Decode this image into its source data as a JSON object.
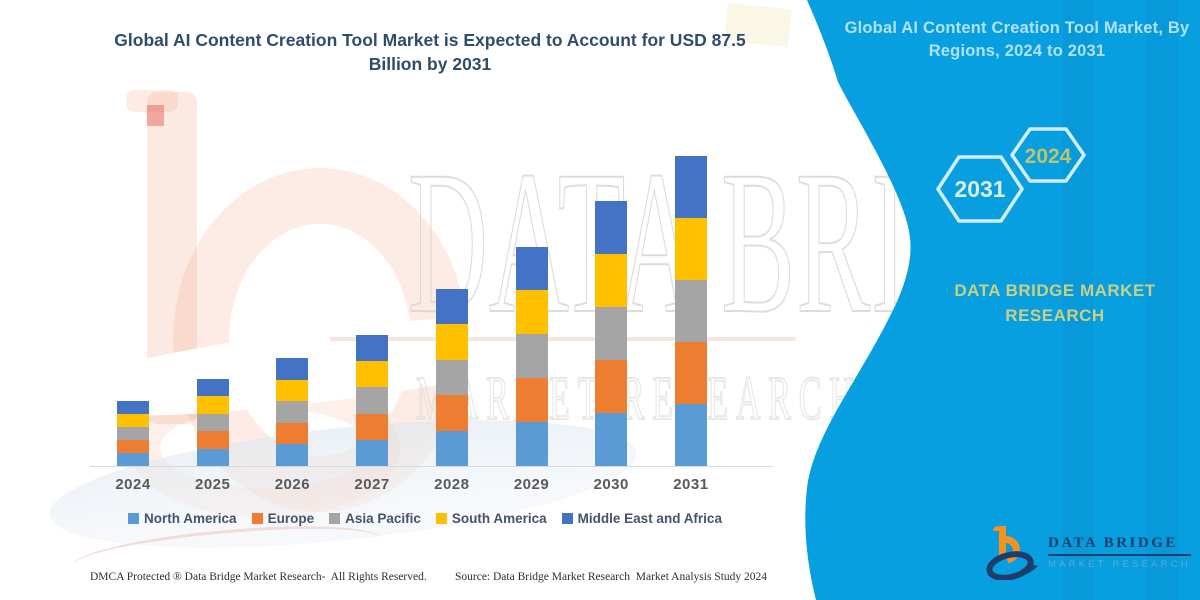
{
  "header": {
    "title_line1": "Global AI Content Creation Tool Market is Expected to Account for USD 87.5",
    "title_line2": "Billion by 2031"
  },
  "chart_data": {
    "type": "bar",
    "stacked": true,
    "title": "Global AI Content Creation Tool Market is Expected to Account for USD 87.5 Billion by 2031",
    "unit": "USD Billion",
    "categories": [
      "2024",
      "2025",
      "2026",
      "2027",
      "2028",
      "2029",
      "2030",
      "2031"
    ],
    "series": [
      {
        "name": "North America",
        "color": "#5B9BD5",
        "values": [
          3.7,
          4.9,
          6.1,
          7.4,
          10.0,
          12.4,
          15.0,
          17.5
        ]
      },
      {
        "name": "Europe",
        "color": "#ED7D31",
        "values": [
          3.7,
          4.9,
          6.1,
          7.4,
          10.0,
          12.4,
          15.0,
          17.5
        ]
      },
      {
        "name": "Asia Pacific",
        "color": "#A5A5A5",
        "values": [
          3.7,
          4.9,
          6.1,
          7.4,
          10.0,
          12.4,
          15.0,
          17.5
        ]
      },
      {
        "name": "South America",
        "color": "#FFC000",
        "values": [
          3.7,
          4.9,
          6.1,
          7.4,
          10.0,
          12.4,
          15.0,
          17.5
        ]
      },
      {
        "name": "Middle East and Africa",
        "color": "#4472C4",
        "values": [
          3.7,
          4.9,
          6.1,
          7.4,
          10.0,
          12.4,
          15.0,
          17.5
        ]
      }
    ],
    "totals": [
      18.5,
      24.5,
      30.5,
      37.0,
      50.0,
      62.0,
      75.0,
      87.5
    ],
    "ylim": [
      0,
      87.5
    ],
    "y_axis_labels_visible": false,
    "gridlines": false,
    "legend_position": "bottom"
  },
  "side_panel": {
    "background": "#089FE0",
    "title": "Global AI Content Creation Tool Market, By Regions, 2024 to 2031",
    "hex_left_label": "2031",
    "hex_right_label": "2024",
    "brand_line1": "DATA BRIDGE MARKET",
    "brand_line2": "RESEARCH"
  },
  "watermark": {
    "letters_row1": "DATA BRIDGE",
    "letters_row2": "MARKET RESEARCH"
  },
  "logo": {
    "name": "DATA BRIDGE",
    "tagline": "MARKET RESEARCH"
  },
  "footer": {
    "left": "DMCA Protected ® Data Bridge Market Research-  All Rights Reserved.",
    "source": "Source: Data Bridge Market Research  Market Analysis Study 2024"
  }
}
